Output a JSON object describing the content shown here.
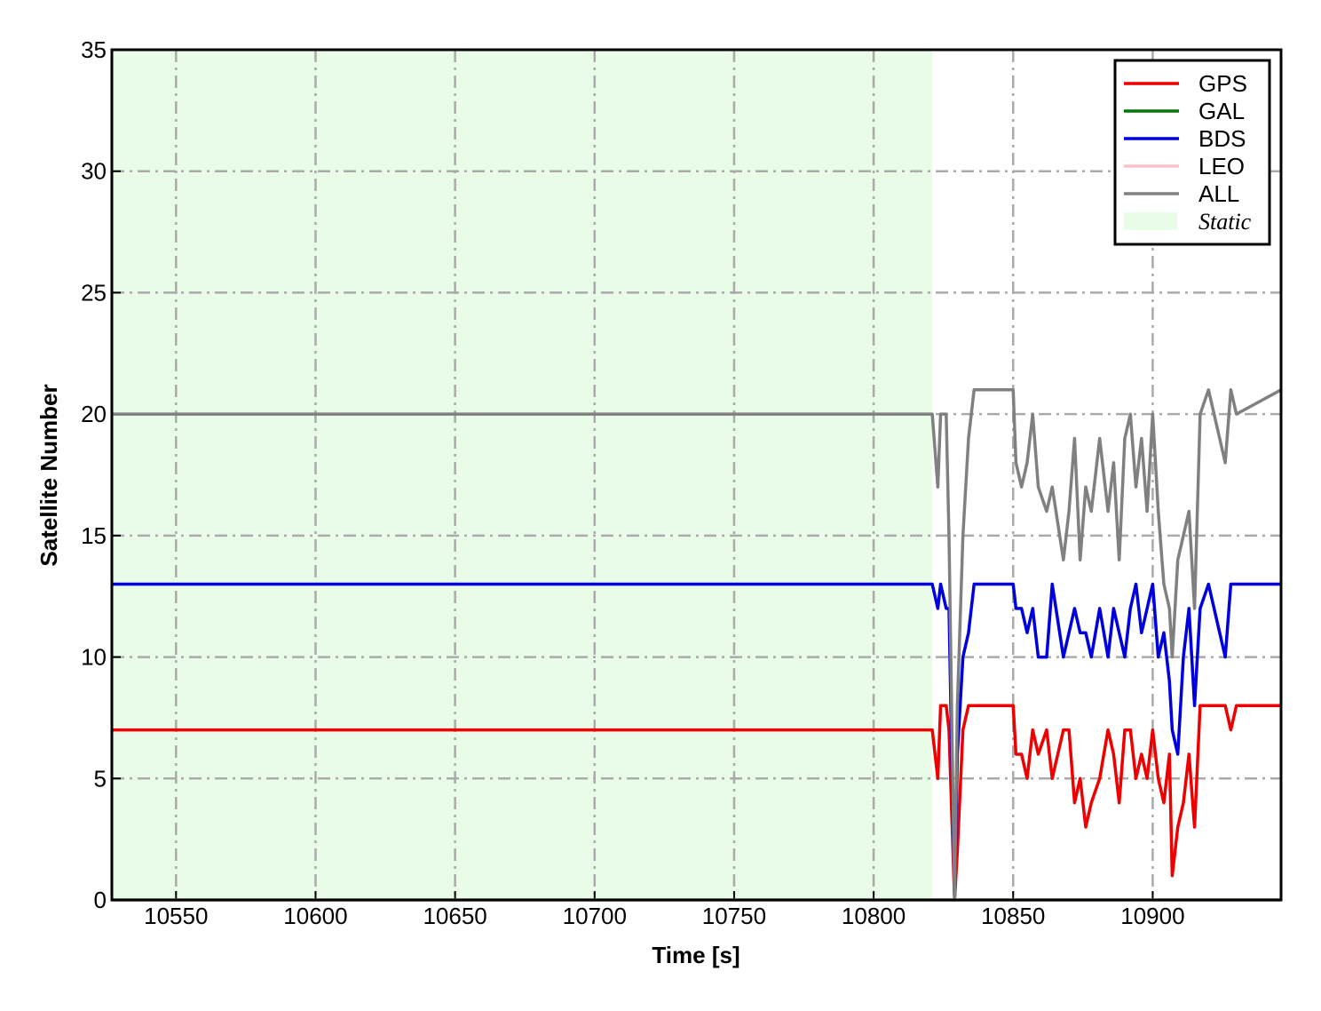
{
  "chart_data": {
    "type": "line",
    "xlabel": "Time [s]",
    "ylabel": "Satellite Number",
    "xlim": [
      10527,
      10946
    ],
    "ylim": [
      0,
      35
    ],
    "xticks": [
      10550,
      10600,
      10650,
      10700,
      10750,
      10800,
      10850,
      10900
    ],
    "yticks": [
      0,
      5,
      10,
      15,
      20,
      25,
      30,
      35
    ],
    "grid": true,
    "legend": "upper right",
    "shaded": {
      "label": "Static",
      "xrange": [
        10527,
        10821
      ],
      "color": "#e8fce8"
    },
    "x": [
      10527,
      10821,
      10823,
      10824,
      10826,
      10827,
      10829,
      10830,
      10832,
      10834,
      10836,
      10850,
      10851,
      10853,
      10855,
      10857,
      10859,
      10862,
      10864,
      10868,
      10870,
      10872,
      10874,
      10876,
      10878,
      10881,
      10884,
      10886,
      10888,
      10890,
      10892,
      10894,
      10896,
      10898,
      10900,
      10902,
      10904,
      10906,
      10907,
      10909,
      10911,
      10913,
      10915,
      10917,
      10920,
      10926,
      10928,
      10930,
      10946
    ],
    "series": [
      {
        "name": "GPS",
        "color": "#ee0000",
        "values": [
          7,
          7,
          5,
          8,
          8,
          7,
          0,
          2,
          7,
          8,
          8,
          8,
          6,
          6,
          5,
          7,
          6,
          7,
          5,
          7,
          7,
          4,
          5,
          3,
          4,
          5,
          7,
          6,
          4,
          7,
          7,
          5,
          6,
          5,
          7,
          5,
          4,
          6,
          1,
          3,
          4,
          6,
          3,
          8,
          8,
          8,
          7,
          8,
          8
        ]
      },
      {
        "name": "GAL",
        "color": "#007700",
        "values": [
          0,
          0,
          0,
          0,
          0,
          0,
          0,
          0,
          0,
          0,
          0,
          0,
          0,
          0,
          0,
          0,
          0,
          0,
          0,
          0,
          0,
          0,
          0,
          0,
          0,
          0,
          0,
          0,
          0,
          0,
          0,
          0,
          0,
          0,
          0,
          0,
          0,
          0,
          0,
          0,
          0,
          0,
          0,
          0,
          0,
          0,
          0,
          0,
          0
        ]
      },
      {
        "name": "BDS",
        "color": "#0000dd",
        "values": [
          13,
          13,
          12,
          13,
          12,
          12,
          0,
          6,
          10,
          11,
          13,
          13,
          12,
          12,
          11,
          12,
          10,
          10,
          13,
          10,
          11,
          12,
          11,
          11,
          10,
          12,
          10,
          12,
          11,
          10,
          12,
          13,
          11,
          12,
          13,
          10,
          11,
          9,
          7,
          6,
          10,
          12,
          8,
          12,
          13,
          10,
          13,
          13,
          13
        ]
      },
      {
        "name": "LEO",
        "color": "#ffc0cb",
        "values": [
          0,
          0,
          0,
          0,
          0,
          0,
          0,
          0,
          0,
          0,
          0,
          0,
          0,
          0,
          0,
          0,
          0,
          0,
          0,
          0,
          0,
          0,
          0,
          0,
          0,
          0,
          0,
          0,
          0,
          0,
          0,
          0,
          0,
          0,
          0,
          0,
          0,
          0,
          0,
          0,
          0,
          0,
          0,
          0,
          0,
          0,
          0,
          0,
          0
        ]
      },
      {
        "name": "ALL",
        "color": "#808080",
        "values": [
          20,
          20,
          17,
          20,
          20,
          15,
          0,
          8,
          15,
          19,
          21,
          21,
          18,
          17,
          18,
          20,
          17,
          16,
          17,
          14,
          16,
          19,
          14,
          17,
          16,
          19,
          16,
          18,
          14,
          19,
          20,
          17,
          19,
          16,
          20,
          16,
          13,
          12,
          10,
          14,
          15,
          16,
          12,
          20,
          21,
          18,
          21,
          20,
          21
        ]
      }
    ]
  }
}
